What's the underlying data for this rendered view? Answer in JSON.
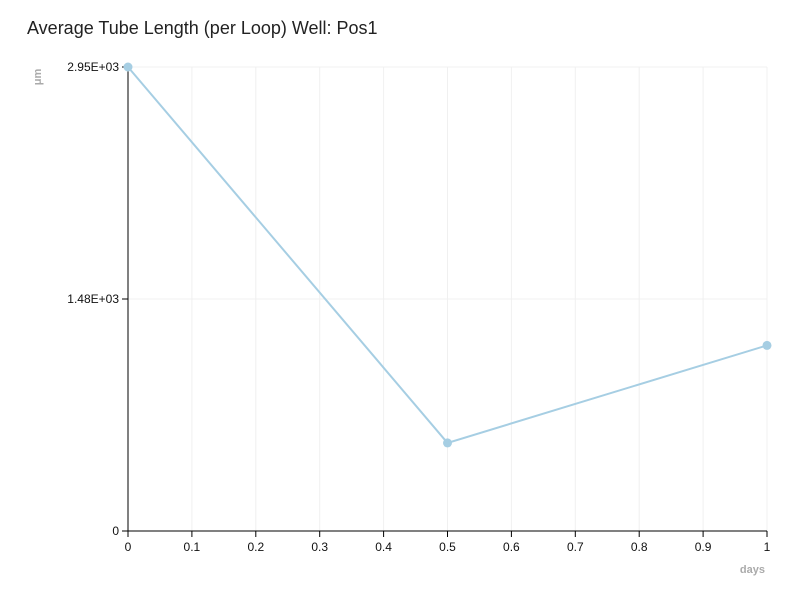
{
  "chart_data": {
    "type": "line",
    "title": "Average Tube Length (per Loop) Well: Pos1",
    "xlabel": "days",
    "ylabel": "μm",
    "xlim": [
      0,
      1
    ],
    "ylim": [
      0,
      2950
    ],
    "x_ticks": [
      0,
      0.1,
      0.2,
      0.3,
      0.4,
      0.5,
      0.6,
      0.7,
      0.8,
      0.9,
      1
    ],
    "x_tick_labels": [
      "0",
      "0.1",
      "0.2",
      "0.3",
      "0.4",
      "0.5",
      "0.6",
      "0.7",
      "0.8",
      "0.9",
      "1"
    ],
    "y_ticks": [
      0,
      1475,
      2950
    ],
    "y_tick_labels": [
      "0",
      "1.48E+03",
      "2.95E+03"
    ],
    "grid": true,
    "series": [
      {
        "color": "#a6cee3",
        "x": [
          0,
          0.5,
          1
        ],
        "y": [
          2950,
          560,
          1180
        ]
      }
    ]
  }
}
